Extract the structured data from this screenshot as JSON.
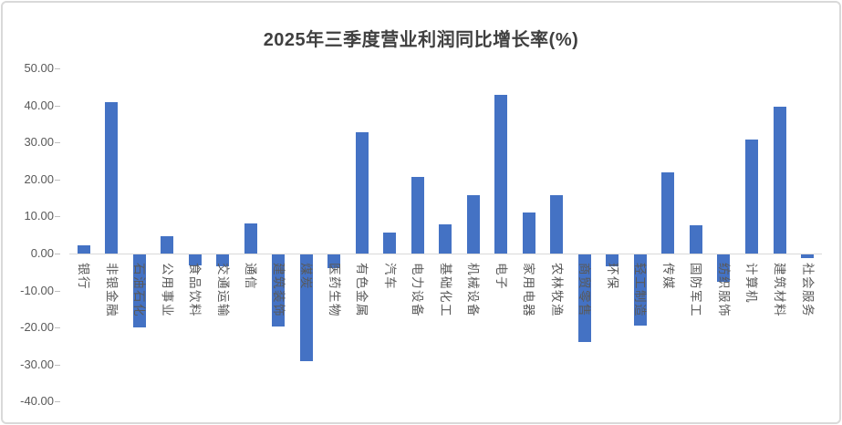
{
  "frame": {
    "background": "#FFFFFF",
    "border_color": "#D9D9D9"
  },
  "chart_data": {
    "type": "bar",
    "title": "2025年三季度营业利润同比增长率(%)",
    "categories": [
      "银行",
      "非银金融",
      "石油石化",
      "公用事业",
      "食品饮料",
      "交通运输",
      "通信",
      "建筑装饰",
      "煤炭",
      "医药生物",
      "有色金属",
      "汽车",
      "电力设备",
      "基础化工",
      "机械设备",
      "电子",
      "家用电器",
      "农林牧渔",
      "商贸零售",
      "环保",
      "轻工制造",
      "传媒",
      "国防军工",
      "纺织服饰",
      "计算机",
      "建筑材料",
      "社会服务"
    ],
    "values": [
      2.1,
      40.9,
      -19.7,
      4.8,
      -2.9,
      -3.3,
      8.1,
      -19.4,
      -28.8,
      -3.7,
      32.9,
      5.7,
      20.7,
      7.8,
      15.9,
      42.9,
      11.0,
      15.7,
      -23.8,
      -3.1,
      -19.2,
      22.0,
      7.7,
      -7.3,
      30.9,
      39.8,
      -0.9
    ],
    "xlabel": "",
    "ylabel": "",
    "ylim": [
      -40,
      50
    ],
    "ytick_interval": 10,
    "ytick_labels": [
      "50.00",
      "40.00",
      "30.00",
      "20.00",
      "10.00",
      "0.00",
      "-10.00",
      "-20.00",
      "-30.00",
      "-40.00"
    ],
    "grid": false,
    "legend_position": "none",
    "bar_color": "#4472C4",
    "axis_line_color": "#D9D9D9",
    "tick_mark_color": "#BFBFBF",
    "tick_label_color": "#595959",
    "title_color": "#404040"
  }
}
